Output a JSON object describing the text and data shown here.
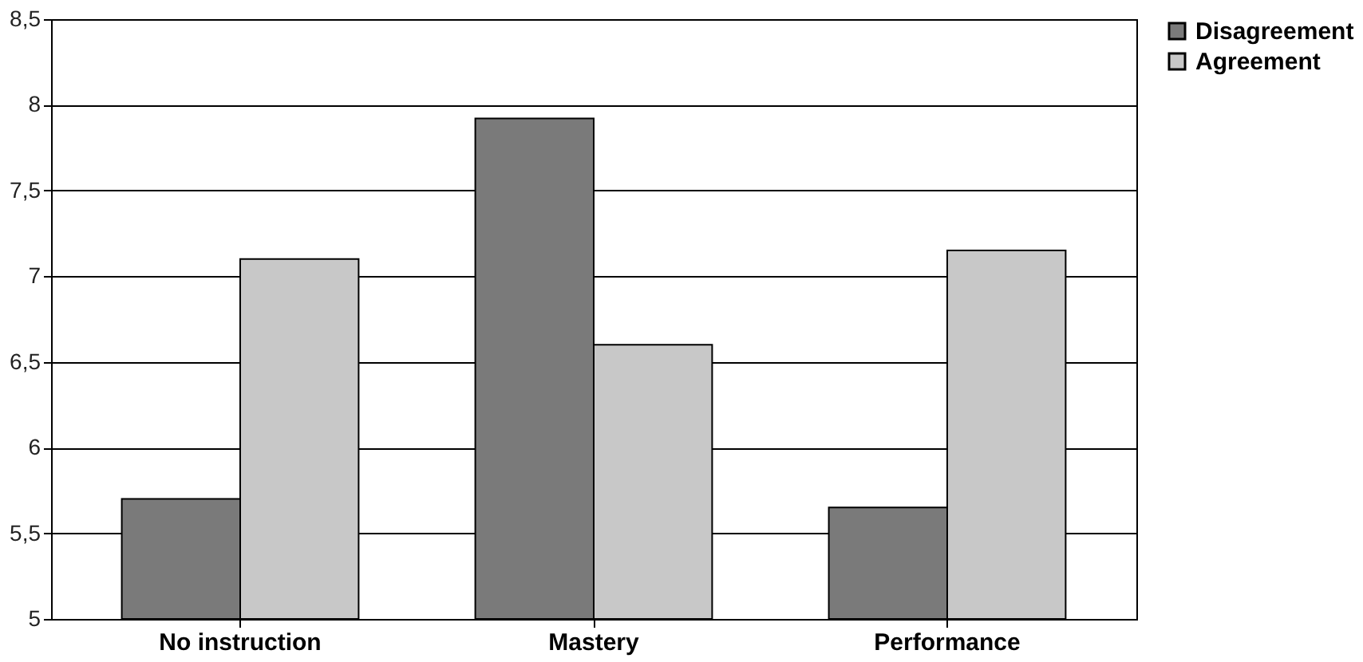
{
  "chart_data": {
    "type": "bar",
    "categories": [
      "No instruction",
      "Mastery",
      "Performance"
    ],
    "series": [
      {
        "name": "Disagreement",
        "color": "#7a7a7a",
        "values": [
          5.7,
          7.92,
          5.65
        ]
      },
      {
        "name": "Agreement",
        "color": "#c8c8c8",
        "values": [
          7.1,
          6.6,
          7.15
        ]
      }
    ],
    "ylim": [
      5,
      8.5
    ],
    "yticks": [
      5,
      {
        "value": 5.5,
        "label": "5,5"
      },
      6,
      {
        "value": 6.5,
        "label": "6,5"
      },
      7,
      {
        "value": 7.5,
        "label": "7,5"
      },
      8,
      {
        "value": 8.5,
        "label": "8,5"
      }
    ],
    "grid": "y",
    "legend": "top right"
  }
}
